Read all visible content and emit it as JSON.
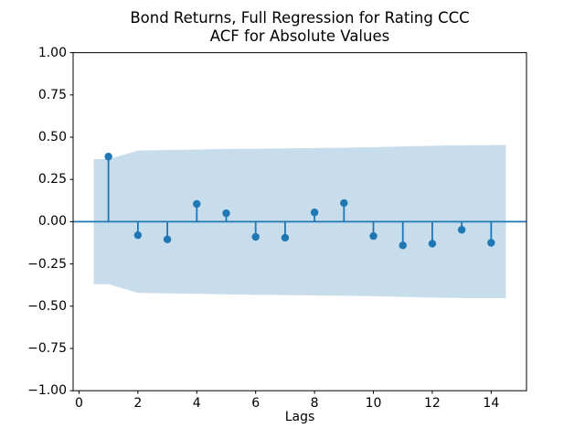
{
  "title": {
    "line1": "Bond Returns, Full Regression for Rating CCC",
    "line2": "ACF for Absolute Values"
  },
  "chart_data": {
    "type": "stem",
    "title": "Bond Returns, Full Regression for Rating CCC — ACF for Absolute Values",
    "xlabel": "Lags",
    "ylabel": "",
    "xlim": [
      -0.2,
      15.2
    ],
    "ylim": [
      -1.0,
      1.0
    ],
    "grid": false,
    "x": [
      1,
      2,
      3,
      4,
      5,
      6,
      7,
      8,
      9,
      10,
      11,
      12,
      13,
      14
    ],
    "values": [
      0.385,
      -0.08,
      -0.105,
      0.105,
      0.05,
      -0.09,
      -0.095,
      0.055,
      0.11,
      -0.085,
      -0.14,
      -0.13,
      -0.048,
      -0.125
    ],
    "confidence_band": {
      "x": [
        0.5,
        1,
        2,
        3,
        4,
        5,
        6,
        7,
        8,
        9,
        10,
        11,
        12,
        13,
        14,
        14.5
      ],
      "upper": [
        0.37,
        0.37,
        0.421,
        0.424,
        0.427,
        0.43,
        0.432,
        0.434,
        0.436,
        0.438,
        0.441,
        0.445,
        0.449,
        0.452,
        0.453,
        0.453
      ],
      "lower": [
        -0.37,
        -0.37,
        -0.421,
        -0.424,
        -0.427,
        -0.43,
        -0.432,
        -0.434,
        -0.436,
        -0.438,
        -0.441,
        -0.445,
        -0.449,
        -0.452,
        -0.453,
        -0.453
      ]
    },
    "yticks": {
      "values": [
        1.0,
        0.75,
        0.5,
        0.25,
        0.0,
        -0.25,
        -0.5,
        -0.75,
        -1.0
      ],
      "labels": [
        "1.00",
        "0.75",
        "0.50",
        "0.25",
        "0.00",
        "−0.25",
        "−0.50",
        "−0.75",
        "−1.00"
      ]
    },
    "xticks": {
      "values": [
        0,
        2,
        4,
        6,
        8,
        10,
        12,
        14
      ],
      "labels": [
        "0",
        "2",
        "4",
        "6",
        "8",
        "10",
        "12",
        "14"
      ]
    },
    "colors": {
      "line": "#1f77b4",
      "band": "#1f77b4",
      "band_opacity": 0.25,
      "spine": "#000000",
      "background": "#ffffff"
    }
  }
}
